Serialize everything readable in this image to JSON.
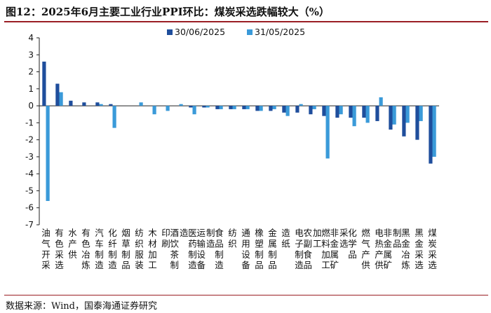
{
  "title": "图12：2025年6月主要工业行业PPI环比：煤炭采选跌幅较大（%）",
  "source": "数据来源：Wind，国泰海通证券研究",
  "chart_data": {
    "type": "bar",
    "categories": [
      "油气开采",
      "有色采选",
      "水产供",
      "有色冶炼",
      "汽车制造",
      "化纤制造",
      "烟草制品",
      "纺织服装",
      "木材加工",
      "印刷",
      "酒饮茶制造",
      "医药制造",
      "运输设备制造",
      "食品制造",
      "纺织",
      "通用设备",
      "橡塑制品",
      "金属制品",
      "造纸",
      "电子制造",
      "农副食品加工",
      "燃料加工",
      "非金属矿采选",
      "化学品",
      "燃气产供",
      "电热产供",
      "非金属矿制品",
      "黑金冶炼",
      "黑金采选",
      "煤炭采选"
    ],
    "series": [
      {
        "name": "30/06/2025",
        "color": "#1f4e9c",
        "values": [
          2.6,
          1.3,
          0.3,
          0.2,
          0.2,
          0.1,
          0.0,
          0.0,
          0.0,
          0.0,
          0.0,
          -0.1,
          -0.1,
          -0.2,
          -0.2,
          -0.2,
          -0.3,
          -0.3,
          -0.4,
          -0.4,
          -0.5,
          -0.6,
          -0.7,
          -0.7,
          -0.7,
          -0.9,
          -1.4,
          -1.8,
          -2.0,
          -3.4
        ]
      },
      {
        "name": "31/05/2025",
        "color": "#3a9ad9",
        "values": [
          -5.6,
          0.8,
          0.0,
          0.0,
          0.1,
          -1.3,
          0.0,
          0.2,
          -0.5,
          -0.3,
          0.1,
          -0.5,
          -0.1,
          -0.2,
          -0.2,
          -0.2,
          -0.3,
          -0.2,
          -0.6,
          0.1,
          -0.2,
          -3.1,
          -0.5,
          -1.2,
          -1.0,
          0.5,
          -1.1,
          -1.0,
          -0.9,
          -3.0
        ]
      }
    ],
    "ylim": [
      -7,
      4
    ],
    "yticks": [
      4,
      3,
      2,
      1,
      0,
      -1,
      -2,
      -3,
      -4,
      -5,
      -6,
      -7
    ],
    "legend_position": "top",
    "grid": false
  }
}
